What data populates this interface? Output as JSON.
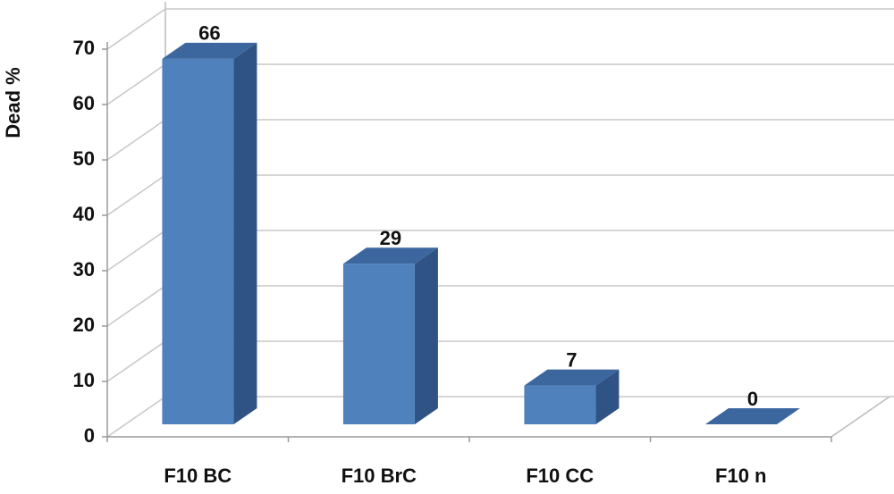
{
  "chart_data": {
    "type": "bar3d",
    "y_label": "Dead %",
    "categories": [
      "F10 BC",
      "F10 BrC",
      "F10 CC",
      "F10 n"
    ],
    "values": [
      66,
      29,
      7,
      0
    ],
    "color": "#4f81bd",
    "ylim": [
      0,
      70
    ],
    "yticks": [
      0,
      10,
      20,
      30,
      40,
      50,
      60,
      70
    ],
    "grid": true
  }
}
